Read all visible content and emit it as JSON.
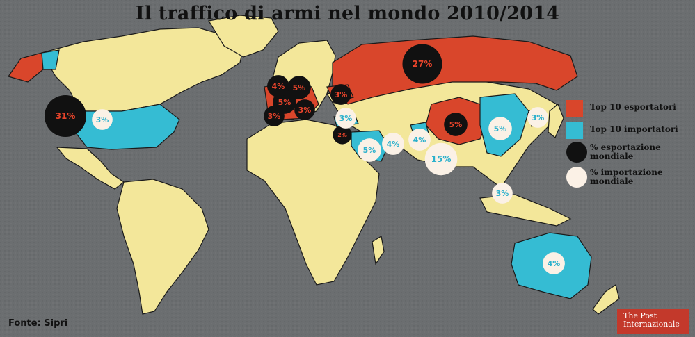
{
  "title": "Il traffico di armi nel mondo 2010/2014",
  "source": "Fonte: Sipri",
  "logo": {
    "line1": "The Post",
    "line2": "Internazionale"
  },
  "colors": {
    "background": "#6b6e70",
    "land": "#f3e79a",
    "exporter": "#d9462b",
    "importer": "#35bcd3",
    "export_dot": "#111111",
    "import_dot": "#fbf1e6",
    "export_text": "#e8442b",
    "import_text": "#2bb0cc"
  },
  "legend": [
    {
      "label": "Top 10 esportatori",
      "kind": "swatch",
      "color": "#d9462b"
    },
    {
      "label": "Top 10 importatori",
      "kind": "swatch",
      "color": "#35bcd3"
    },
    {
      "label": "% esportazione mondiale",
      "kind": "dot",
      "color": "#111111"
    },
    {
      "label": "% importazione mondiale",
      "kind": "dot",
      "color": "#fbf1e6"
    }
  ],
  "exporters": [
    {
      "country": "Stati Uniti",
      "share": "31%"
    },
    {
      "country": "Russia",
      "share": "27%"
    },
    {
      "country": "Cina",
      "share": "5%"
    },
    {
      "country": "Germania",
      "share": "5%"
    },
    {
      "country": "Francia",
      "share": "5%"
    },
    {
      "country": "Regno Unito",
      "share": "4%"
    },
    {
      "country": "Spagna",
      "share": "3%"
    },
    {
      "country": "Italia",
      "share": "3%"
    },
    {
      "country": "Ucraina",
      "share": "3%"
    },
    {
      "country": "Israele",
      "share": "2%"
    }
  ],
  "importers": [
    {
      "country": "India",
      "share": "15%"
    },
    {
      "country": "Arabia Saudita",
      "share": "5%"
    },
    {
      "country": "Cina",
      "share": "5%"
    },
    {
      "country": "Emirati Arabi Uniti",
      "share": "4%"
    },
    {
      "country": "Pakistan",
      "share": "4%"
    },
    {
      "country": "Australia",
      "share": "4%"
    },
    {
      "country": "Turchia",
      "share": "3%"
    },
    {
      "country": "Stati Uniti",
      "share": "3%"
    },
    {
      "country": "Corea del Sud",
      "share": "3%"
    },
    {
      "country": "Singapore",
      "share": "3%"
    }
  ]
}
